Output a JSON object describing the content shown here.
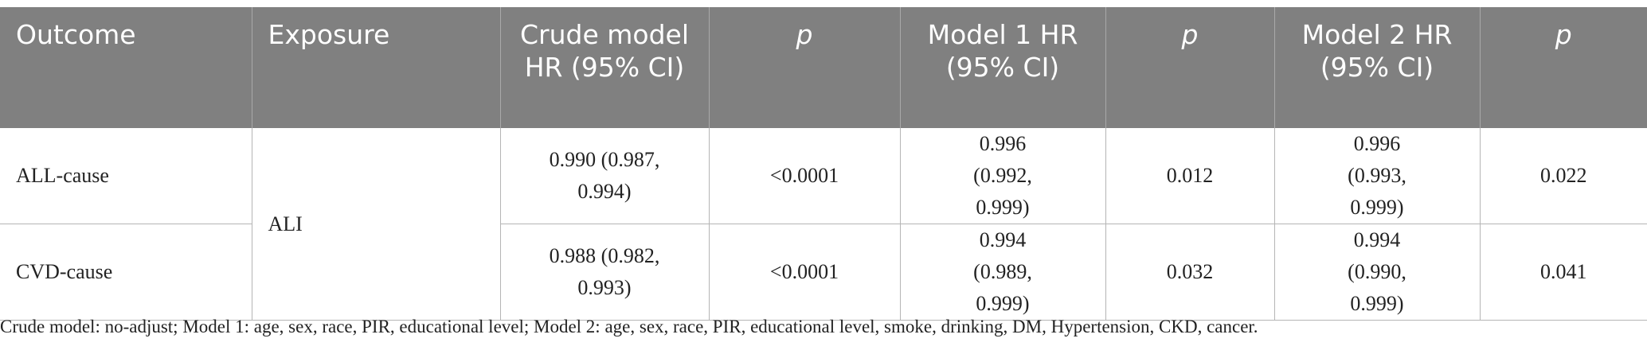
{
  "table": {
    "headers": [
      "Outcome",
      "Exposure",
      "Crude model HR (95% CI)",
      "p",
      "Model 1 HR (95% CI)",
      "p",
      "Model 2 HR (95% CI)",
      "p"
    ],
    "exposure": "ALI",
    "rows": [
      {
        "outcome": "ALL-cause",
        "crude_hr": "0.990 (0.987, 0.994)",
        "crude_p": "<0.0001",
        "model1_hr": "0.996 (0.992, 0.999)",
        "model1_p": "0.012",
        "model2_hr": "0.996 (0.993, 0.999)",
        "model2_p": "0.022"
      },
      {
        "outcome": "CVD-cause",
        "crude_hr": "0.988 (0.982, 0.993)",
        "crude_p": "<0.0001",
        "model1_hr": "0.994 (0.989, 0.999)",
        "model1_p": "0.032",
        "model2_hr": "0.994 (0.990, 0.999)",
        "model2_p": "0.041"
      }
    ]
  },
  "footnote": "Crude model: no-adjust; Model 1: age, sex, race, PIR, educational level; Model 2: age, sex, race, PIR, educational level, smoke, drinking, DM, Hypertension, CKD, cancer."
}
